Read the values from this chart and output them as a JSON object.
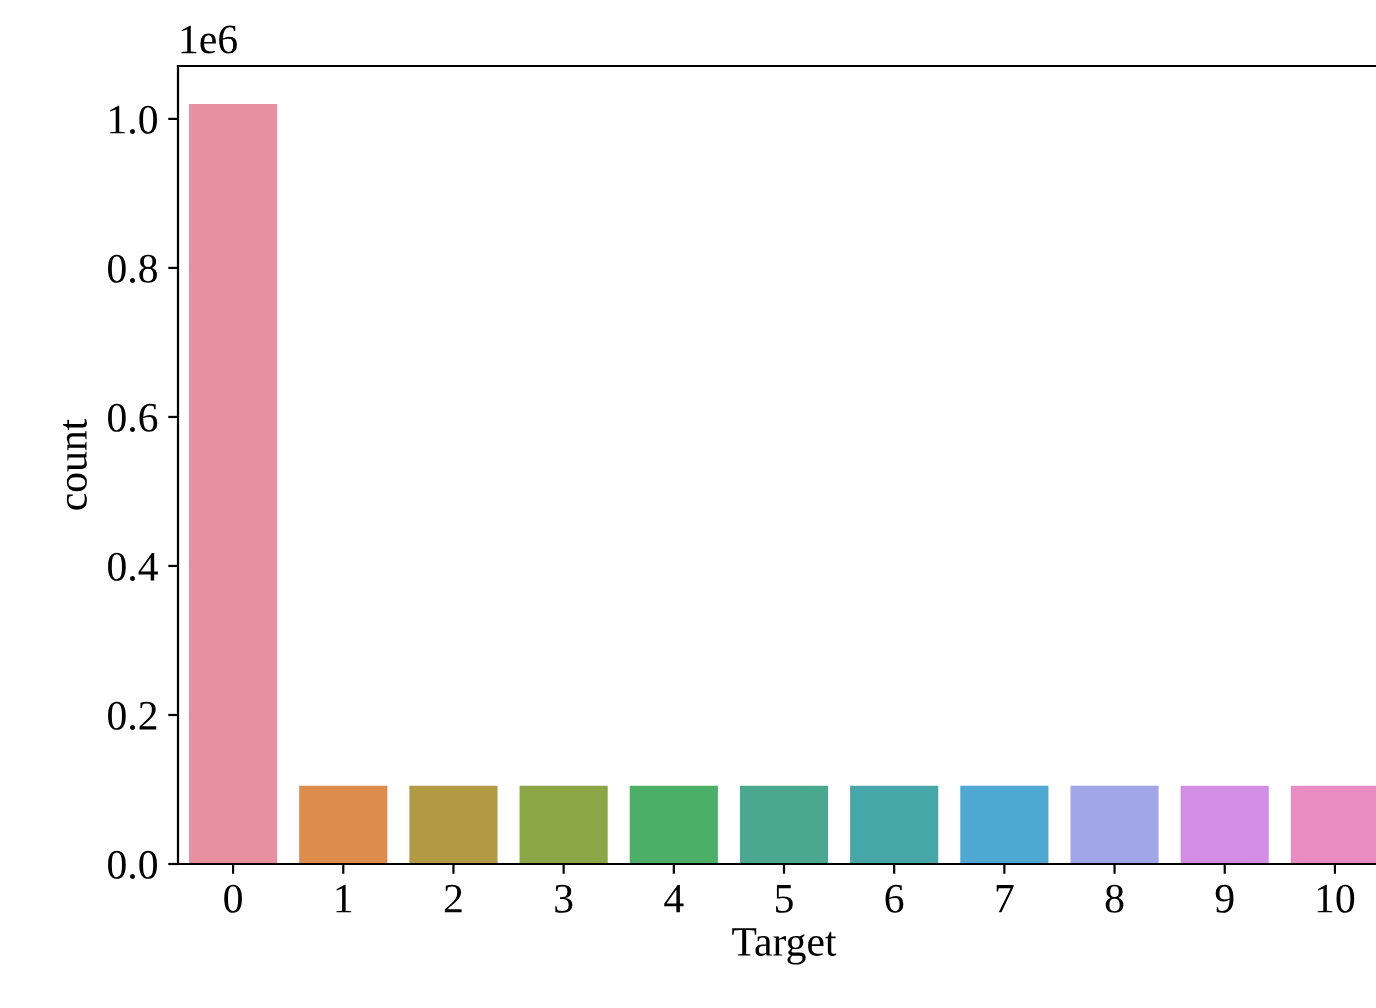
{
  "chart_data": {
    "type": "bar",
    "xlabel": "Target",
    "ylabel": "count",
    "categories": [
      "0",
      "1",
      "2",
      "3",
      "4",
      "5",
      "6",
      "7",
      "8",
      "9",
      "10"
    ],
    "values": [
      1.02,
      0.105,
      0.105,
      0.105,
      0.105,
      0.105,
      0.105,
      0.105,
      0.105,
      0.105,
      0.105
    ],
    "colors": [
      "#e8909f",
      "#dd8c4c",
      "#b29a45",
      "#8aa645",
      "#4caf68",
      "#49a88e",
      "#47a7a8",
      "#4ea8d2",
      "#a0a6e8",
      "#d58ee6",
      "#e98cc4"
    ],
    "ylim": [
      0,
      1.071
    ],
    "yticks": [
      {
        "value": 0,
        "label": "0.0"
      },
      0.2,
      0.4,
      0.6,
      0.8,
      {
        "value": 1,
        "label": "1.0"
      }
    ],
    "annotations": [
      "1e6"
    ]
  }
}
